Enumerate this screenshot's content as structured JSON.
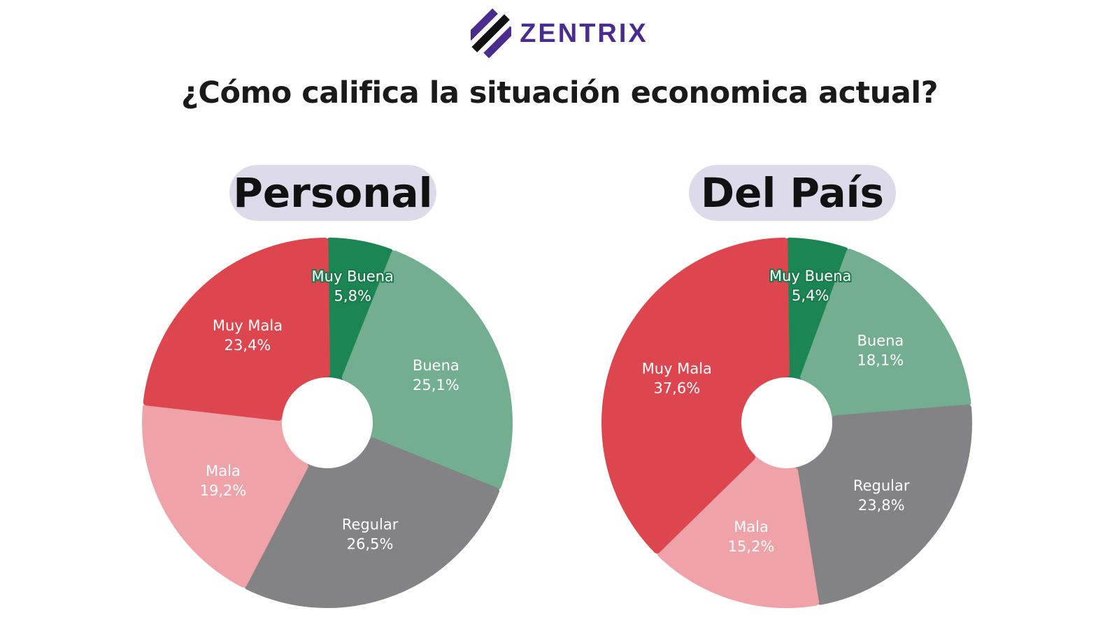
{
  "brand": {
    "name": "ZENTRIX"
  },
  "title": "¿Cómo califica la situación economica actual?",
  "colors": {
    "muy_buena": "#1b8553",
    "buena": "#72ae8f",
    "regular": "#838386",
    "mala": "#efa2a8",
    "muy_mala": "#dd464e",
    "pill": "#dddbe9",
    "brand": "#4a2c8f"
  },
  "chart_data": [
    {
      "type": "pie",
      "title": "Personal",
      "slices": [
        {
          "label": "Muy Buena",
          "value": 5.8,
          "display": "5,8%",
          "color": "#1b8553"
        },
        {
          "label": "Buena",
          "value": 25.1,
          "display": "25,1%",
          "color": "#72ae8f"
        },
        {
          "label": "Regular",
          "value": 26.5,
          "display": "26,5%",
          "color": "#838386"
        },
        {
          "label": "Mala",
          "value": 19.2,
          "display": "19,2%",
          "color": "#efa2a8"
        },
        {
          "label": "Muy Mala",
          "value": 23.4,
          "display": "23,4%",
          "color": "#dd464e"
        }
      ]
    },
    {
      "type": "pie",
      "title": "Del País",
      "slices": [
        {
          "label": "Muy Buena",
          "value": 5.4,
          "display": "5,4%",
          "color": "#1b8553"
        },
        {
          "label": "Buena",
          "value": 18.1,
          "display": "18,1%",
          "color": "#72ae8f"
        },
        {
          "label": "Regular",
          "value": 23.8,
          "display": "23,8%",
          "color": "#838386"
        },
        {
          "label": "Mala",
          "value": 15.2,
          "display": "15,2%",
          "color": "#efa2a8"
        },
        {
          "label": "Muy Mala",
          "value": 37.6,
          "display": "37,6%",
          "color": "#dd464e"
        }
      ]
    }
  ]
}
